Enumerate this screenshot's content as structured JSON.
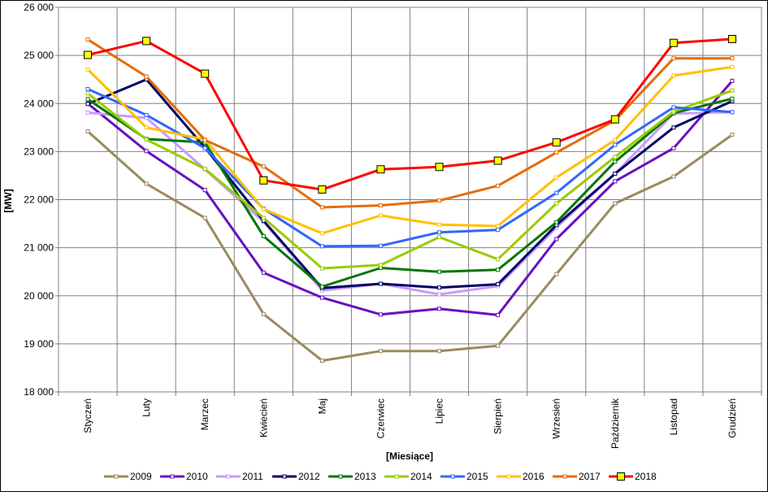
{
  "chart_data": {
    "type": "line",
    "title": "",
    "xlabel": "[Miesiące]",
    "ylabel": "[MW]",
    "ylim": [
      18000,
      26000
    ],
    "ytick_step": 1000,
    "yticks": [
      "18 000",
      "19 000",
      "20 000",
      "21 000",
      "22 000",
      "23 000",
      "24 000",
      "25 000",
      "26 000"
    ],
    "grid": true,
    "legend_position": "bottom",
    "categories": [
      "Styczeń",
      "Luty",
      "Marzec",
      "Kwiecień",
      "Maj",
      "Czerwiec",
      "Lipiec",
      "Sierpień",
      "Wrzesień",
      "Październik",
      "Listopad",
      "Grudzień"
    ],
    "series": [
      {
        "name": "2009",
        "color": "#9b8a5f",
        "values": [
          23420,
          22330,
          21620,
          19620,
          18650,
          18850,
          18850,
          18960,
          20450,
          21920,
          22480,
          23350
        ]
      },
      {
        "name": "2010",
        "color": "#6a0fc0",
        "values": [
          24000,
          23010,
          22200,
          20480,
          19960,
          19610,
          19730,
          19600,
          21180,
          22380,
          23070,
          24470
        ]
      },
      {
        "name": "2011",
        "color": "#cc99ff",
        "values": [
          23810,
          23700,
          22630,
          21540,
          20110,
          20250,
          20030,
          20200,
          21420,
          22540,
          23790,
          23820
        ]
      },
      {
        "name": "2012",
        "color": "#000066",
        "values": [
          23990,
          24500,
          23080,
          21560,
          20160,
          20250,
          20170,
          20240,
          21470,
          22540,
          23500,
          24050
        ]
      },
      {
        "name": "2013",
        "color": "#007700",
        "values": [
          24090,
          23260,
          23190,
          21240,
          20190,
          20580,
          20500,
          20540,
          21530,
          22790,
          23800,
          24100
        ]
      },
      {
        "name": "2014",
        "color": "#99cc00",
        "values": [
          24210,
          23250,
          22640,
          21620,
          20570,
          20640,
          21220,
          20760,
          21920,
          22890,
          23830,
          24270
        ]
      },
      {
        "name": "2015",
        "color": "#3366ff",
        "values": [
          24300,
          23760,
          23070,
          21810,
          21030,
          21040,
          21320,
          21370,
          22140,
          23140,
          23920,
          23820
        ]
      },
      {
        "name": "2016",
        "color": "#ffc000",
        "values": [
          24710,
          23500,
          23250,
          21800,
          21300,
          21670,
          21480,
          21450,
          22460,
          23240,
          24580,
          24760
        ]
      },
      {
        "name": "2017",
        "color": "#e46c0a",
        "values": [
          25330,
          24560,
          23240,
          22690,
          21840,
          21880,
          21980,
          22290,
          22980,
          23650,
          24940,
          24940
        ]
      },
      {
        "name": "2018",
        "color": "#ff0000",
        "values": [
          25010,
          25300,
          24620,
          22400,
          22210,
          22630,
          22680,
          22810,
          23190,
          23670,
          25260,
          25340
        ]
      }
    ]
  }
}
